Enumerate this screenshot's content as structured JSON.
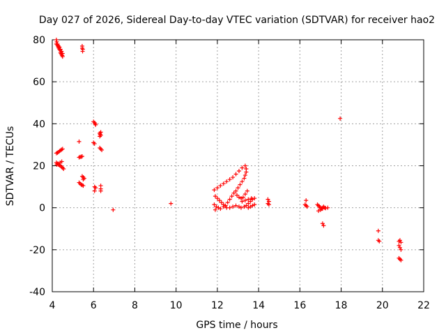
{
  "chart_data": {
    "type": "scatter",
    "title": "Day 027 of 2026, Sidereal Day-to-day VTEC variation (SDTVAR) for receiver hao2",
    "xlabel": "GPS time / hours",
    "ylabel": "SDTVAR / TECUs",
    "xlim": [
      4,
      22
    ],
    "ylim": [
      -40,
      80
    ],
    "xticks": [
      4,
      6,
      8,
      10,
      12,
      14,
      16,
      18,
      20,
      22
    ],
    "yticks": [
      -40,
      -20,
      0,
      20,
      40,
      60,
      80
    ],
    "xtick_labels": [
      "4",
      "6",
      "8",
      "10",
      "12",
      "14",
      "16",
      "18",
      "20",
      "22"
    ],
    "ytick_labels": [
      "-40",
      "-20",
      "0",
      "20",
      "40",
      "60",
      "80"
    ],
    "grid": true,
    "marker": "+",
    "color": "#ff0000",
    "series": [
      {
        "name": "SDTVAR",
        "points": [
          [
            4.2,
            80
          ],
          [
            4.22,
            79
          ],
          [
            4.25,
            78
          ],
          [
            4.28,
            77
          ],
          [
            4.3,
            76.5
          ],
          [
            4.32,
            76
          ],
          [
            4.35,
            75.5
          ],
          [
            4.38,
            75
          ],
          [
            4.4,
            74
          ],
          [
            4.42,
            73.5
          ],
          [
            4.45,
            73
          ],
          [
            4.48,
            72.5
          ],
          [
            4.5,
            72
          ],
          [
            4.2,
            78
          ],
          [
            4.25,
            77.5
          ],
          [
            4.3,
            77
          ],
          [
            4.35,
            76.5
          ],
          [
            4.4,
            75.5
          ],
          [
            4.45,
            74.5
          ],
          [
            4.5,
            73.5
          ],
          [
            5.45,
            77
          ],
          [
            5.45,
            76
          ],
          [
            5.48,
            75.5
          ],
          [
            5.47,
            74.5
          ],
          [
            4.2,
            26
          ],
          [
            4.25,
            26.2
          ],
          [
            4.3,
            26.5
          ],
          [
            4.35,
            27
          ],
          [
            4.4,
            27.3
          ],
          [
            4.45,
            27.7
          ],
          [
            4.5,
            28
          ],
          [
            4.2,
            21.5
          ],
          [
            4.25,
            21
          ],
          [
            4.3,
            20.5
          ],
          [
            4.35,
            20.2
          ],
          [
            4.4,
            20
          ],
          [
            4.45,
            19.5
          ],
          [
            4.5,
            19
          ],
          [
            4.55,
            18.5
          ],
          [
            4.22,
            20.5
          ],
          [
            4.3,
            21
          ],
          [
            4.38,
            21.5
          ],
          [
            4.46,
            22
          ],
          [
            5.3,
            31.5
          ],
          [
            5.3,
            24
          ],
          [
            5.35,
            24.2
          ],
          [
            5.4,
            24.3
          ],
          [
            5.45,
            24.5
          ],
          [
            5.3,
            12
          ],
          [
            5.35,
            11.5
          ],
          [
            5.4,
            11
          ],
          [
            5.45,
            10.8
          ],
          [
            5.5,
            10.5
          ],
          [
            5.45,
            15
          ],
          [
            5.5,
            14.5
          ],
          [
            5.55,
            14
          ],
          [
            5.5,
            13.5
          ],
          [
            6.0,
            41
          ],
          [
            6.05,
            40.5
          ],
          [
            6.08,
            40
          ],
          [
            6.1,
            39.5
          ],
          [
            6.0,
            31
          ],
          [
            6.05,
            30.5
          ],
          [
            6.35,
            36
          ],
          [
            6.3,
            35.5
          ],
          [
            6.32,
            35
          ],
          [
            6.35,
            34.5
          ],
          [
            6.3,
            34
          ],
          [
            6.3,
            28.5
          ],
          [
            6.35,
            28
          ],
          [
            6.4,
            27.5
          ],
          [
            6.05,
            10
          ],
          [
            6.1,
            9.5
          ],
          [
            6.05,
            8
          ],
          [
            6.35,
            10.5
          ],
          [
            6.35,
            9
          ],
          [
            6.35,
            8
          ],
          [
            6.95,
            -1
          ],
          [
            9.75,
            2
          ],
          [
            11.85,
            8.5
          ],
          [
            12.0,
            9.5
          ],
          [
            12.15,
            10.5
          ],
          [
            12.3,
            11.5
          ],
          [
            12.45,
            12.5
          ],
          [
            12.6,
            13.5
          ],
          [
            12.75,
            14.5
          ],
          [
            12.9,
            16
          ],
          [
            13.05,
            17.5
          ],
          [
            13.2,
            19
          ],
          [
            11.9,
            5.5
          ],
          [
            12.0,
            4.5
          ],
          [
            12.1,
            3.5
          ],
          [
            12.2,
            2.5
          ],
          [
            12.3,
            1.5
          ],
          [
            12.4,
            1
          ],
          [
            12.5,
            2.5
          ],
          [
            12.6,
            4
          ],
          [
            12.7,
            5.5
          ],
          [
            12.8,
            7
          ],
          [
            11.85,
            1.5
          ],
          [
            11.95,
            0.5
          ],
          [
            12.05,
            0
          ],
          [
            11.9,
            -1
          ],
          [
            12.15,
            -0.5
          ],
          [
            12.3,
            0.5
          ],
          [
            12.45,
            0
          ],
          [
            12.6,
            0
          ],
          [
            12.75,
            0.5
          ],
          [
            12.9,
            1
          ],
          [
            13.05,
            0.5
          ],
          [
            13.15,
            0
          ],
          [
            12.9,
            8
          ],
          [
            13.0,
            9.5
          ],
          [
            13.1,
            11
          ],
          [
            13.2,
            12.5
          ],
          [
            13.3,
            14
          ],
          [
            13.35,
            15.5
          ],
          [
            13.4,
            17
          ],
          [
            13.4,
            18.5
          ],
          [
            13.35,
            20
          ],
          [
            12.95,
            6
          ],
          [
            13.05,
            5
          ],
          [
            13.15,
            4.5
          ],
          [
            13.25,
            5
          ],
          [
            13.35,
            6.5
          ],
          [
            13.45,
            8
          ],
          [
            13.3,
            0.5
          ],
          [
            13.4,
            1
          ],
          [
            13.5,
            2
          ],
          [
            13.6,
            3
          ],
          [
            13.7,
            4
          ],
          [
            13.8,
            4.5
          ],
          [
            13.2,
            3
          ],
          [
            13.35,
            3.5
          ],
          [
            13.5,
            4
          ],
          [
            13.65,
            4.5
          ],
          [
            13.5,
            0
          ],
          [
            13.6,
            0.5
          ],
          [
            13.7,
            1
          ],
          [
            13.8,
            1.5
          ],
          [
            14.45,
            4
          ],
          [
            14.5,
            3
          ],
          [
            14.45,
            2
          ],
          [
            14.5,
            1.5
          ],
          [
            16.25,
            1.5
          ],
          [
            16.3,
            1
          ],
          [
            16.35,
            0.5
          ],
          [
            16.3,
            3.5
          ],
          [
            16.85,
            1.5
          ],
          [
            16.9,
            1
          ],
          [
            16.95,
            0.5
          ],
          [
            17.0,
            0
          ],
          [
            17.05,
            -0.5
          ],
          [
            17.1,
            0
          ],
          [
            17.15,
            0.5
          ],
          [
            17.2,
            0
          ],
          [
            16.9,
            -1.5
          ],
          [
            17.0,
            -1
          ],
          [
            17.1,
            -0.5
          ],
          [
            17.25,
            -0.2
          ],
          [
            17.35,
            0
          ],
          [
            17.1,
            -7.5
          ],
          [
            17.15,
            -8.5
          ],
          [
            17.95,
            42.5
          ],
          [
            19.8,
            -11
          ],
          [
            19.8,
            -15.5
          ],
          [
            19.85,
            -16
          ],
          [
            20.8,
            -16
          ],
          [
            20.85,
            -15.5
          ],
          [
            20.9,
            -16.5
          ],
          [
            20.8,
            -18
          ],
          [
            20.85,
            -19
          ],
          [
            20.9,
            -20
          ],
          [
            20.8,
            -24
          ],
          [
            20.85,
            -24.5
          ],
          [
            20.9,
            -25
          ]
        ]
      }
    ]
  }
}
